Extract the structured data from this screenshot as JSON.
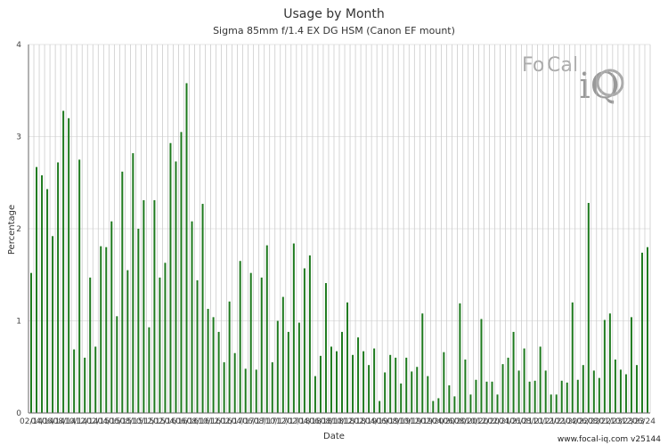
{
  "chart_data": {
    "type": "bar",
    "title": "Usage by Month",
    "subtitle": "Sigma 85mm f/1.4 EX DG HSM (Canon EF mount)",
    "xlabel": "Date",
    "ylabel": "Percentage",
    "ylim": [
      0,
      4
    ],
    "yticks": [
      "0",
      "1",
      "2",
      "3",
      "4"
    ],
    "grid": true,
    "bar_color": "#1e7a1e",
    "grid_color": "#bbbbbb",
    "tick_labels": [
      "02/14",
      "04/14",
      "06/14",
      "08/14",
      "10/14",
      "12/14",
      "02/15",
      "04/15",
      "06/15",
      "08/15",
      "10/15",
      "12/15",
      "02/16",
      "04/16",
      "06/16",
      "08/16",
      "10/16",
      "12/16",
      "02/17",
      "04/17",
      "06/17",
      "08/17",
      "10/17",
      "12/17",
      "02/18",
      "04/18",
      "06/18",
      "08/18",
      "10/18",
      "12/18",
      "02/19",
      "04/19",
      "06/19",
      "08/19",
      "10/19",
      "12/19",
      "02/20",
      "04/20",
      "06/20",
      "08/20",
      "10/20",
      "12/20",
      "02/21",
      "04/21",
      "06/21",
      "08/21",
      "10/21",
      "12/21",
      "02/22",
      "04/22",
      "06/22",
      "08/22",
      "10/22",
      "12/22",
      "02/23",
      "04/23",
      "06/23",
      "08/23",
      "10/23",
      "12/23",
      "02/24",
      "04/24",
      "06/24",
      "08/24"
    ],
    "visible_tick_labels": [
      "02/14",
      "04/14",
      "06/14",
      "08/14",
      "10/14",
      "12/14",
      "02/15",
      "04/15",
      "06/15",
      "08/15",
      "10/15",
      "12/15",
      "02/16",
      "04/16",
      "06/16",
      "08/16",
      "10/16",
      "12/16",
      "02/17",
      "04/17",
      "06/17",
      "08/17",
      "10/17",
      "12/17",
      "02/18",
      "04/18",
      "06/18",
      "08/18",
      "10/18",
      "12/18",
      "02/19",
      "04/19",
      "06/19",
      "08/19",
      "10/19",
      "12/19",
      "02/20",
      "04/20",
      "06/20",
      "08/20",
      "10/20",
      "12/20",
      "02/21",
      "04/21",
      "06/21",
      "08/21",
      "10/21",
      "12/21",
      "02/22",
      "04/22",
      "06/22",
      "08/22",
      "01/23",
      "10/23",
      "12/23",
      "06/24"
    ],
    "x_labels_shown": [
      "02/14",
      "04/14",
      "06/14",
      "08/14",
      "10/14",
      "12/14",
      "02/15",
      "04/15",
      "06/15",
      "08/15",
      "10/15",
      "12/15",
      "02/16",
      "04/16",
      "06/16",
      "08/16",
      "10/16",
      "12/16",
      "02/17",
      "04/17",
      "06/17",
      "08/17",
      "10/17",
      "12/17",
      "02/18",
      "04/18",
      "06/18",
      "08/18",
      "10/18",
      "12/18",
      "02/19",
      "04/19",
      "06/19",
      "08/19",
      "10/19",
      "12/19",
      "02/20",
      "04/20",
      "06/20",
      "08/20",
      "10/20",
      "12/20",
      "02/21",
      "04/21",
      "06/21",
      "08/21",
      "10/21",
      "12/21",
      "02/22",
      "04/22",
      "06/22",
      "08/22",
      "01/23",
      "10/23",
      "12/23",
      "06/24"
    ],
    "values": [
      1.52,
      2.67,
      2.58,
      2.43,
      1.92,
      2.72,
      3.28,
      3.2,
      0.69,
      2.75,
      0.6,
      1.47,
      0.72,
      1.81,
      1.8,
      2.08,
      1.05,
      2.62,
      1.55,
      2.82,
      2.0,
      2.31,
      0.93,
      2.31,
      1.47,
      1.63,
      2.93,
      2.73,
      3.05,
      3.58,
      2.08,
      1.44,
      2.27,
      1.13,
      1.04,
      0.88,
      0.55,
      1.21,
      0.65,
      1.65,
      0.48,
      1.52,
      0.47,
      1.47,
      1.82,
      0.55,
      1.0,
      1.26,
      0.88,
      1.84,
      0.98,
      1.57,
      1.71,
      0.4,
      0.62,
      1.41,
      0.72,
      0.67,
      0.88,
      1.2,
      0.63,
      0.82,
      0.67,
      0.52,
      0.7,
      0.13,
      0.44,
      0.63,
      0.6,
      0.32,
      0.6,
      0.45,
      0.5,
      1.08,
      0.4,
      0.13,
      0.16,
      0.66,
      0.3,
      0.18,
      1.19,
      0.58,
      0.2,
      0.36,
      1.02,
      0.34,
      0.34,
      0.2,
      0.53,
      0.6,
      0.88,
      0.46,
      0.7,
      0.34,
      0.35,
      0.72,
      0.46,
      0.2,
      0.2,
      0.35,
      0.33,
      1.2,
      0.36,
      0.52,
      2.28,
      0.46,
      0.38,
      1.01,
      1.08,
      0.58,
      0.47,
      0.42,
      1.04,
      0.52,
      1.74,
      1.8
    ]
  },
  "footer": "www.focal-iq.com  v25144",
  "logo": {
    "text_fo": "Fo",
    "text_cal": "Cal",
    "text_iq": "iQ"
  }
}
